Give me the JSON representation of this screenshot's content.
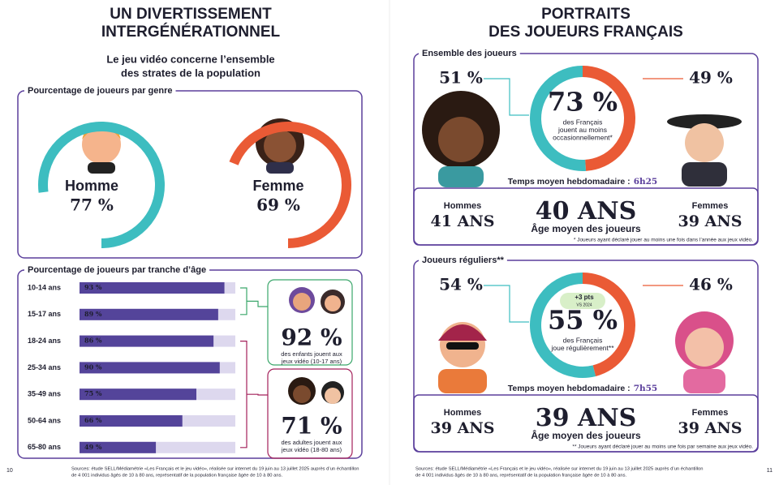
{
  "left": {
    "title_lines": [
      "UN DIVERTISSEMENT",
      "INTERGÉNÉRATIONNEL"
    ],
    "subtitle_lines": [
      "Le jeu vidéo concerne l’ensemble",
      "des strates de la population"
    ],
    "gender": {
      "type": "donut",
      "title": "Pourcentage de joueurs par genre",
      "categories": [
        "Homme",
        "Femme"
      ],
      "values": [
        77,
        69
      ],
      "value_labels": [
        "77 %",
        "69 %"
      ],
      "colors": [
        "#3dbdc0",
        "#ea5a35"
      ]
    },
    "age": {
      "type": "bar",
      "title": "Pourcentage de joueurs par tranche d’âge",
      "categories": [
        "10-14 ans",
        "15-17 ans",
        "18-24 ans",
        "25-34 ans",
        "35-49 ans",
        "50-64 ans",
        "65-80 ans"
      ],
      "values": [
        93,
        89,
        86,
        90,
        75,
        66,
        49
      ],
      "value_labels": [
        "93 %",
        "89 %",
        "86 %",
        "90 %",
        "75 %",
        "66 %",
        "49 %"
      ],
      "xlim": [
        0,
        100
      ],
      "color": "#54449a"
    },
    "callouts": [
      {
        "value": "92 %",
        "lines": [
          "des enfants jouent aux",
          "jeux vidéo (10-17 ans)"
        ],
        "color": "#3aa66a"
      },
      {
        "value": "71 %",
        "lines": [
          "des adultes jouent aux",
          "jeux vidéo (18-80 ans)"
        ],
        "color": "#a3205a"
      }
    ],
    "page_number": "10",
    "sources": [
      "Sources: étude SELL/Médiamétrie «Les Français et le jeu vidéo», réalisée sur internet du 19 juin au 13 juillet 2025 auprès d’un échantillon",
      "de 4 001 individus âgés de 10 à 80 ans, représentatif de la population française âgée de 10 à 80 ans."
    ]
  },
  "right": {
    "title_lines": [
      "PORTRAITS",
      "DES JOUEURS FRANÇAIS"
    ],
    "panels": [
      {
        "label": "Ensemble des joueurs",
        "type": "donut",
        "values": [
          51,
          49
        ],
        "value_labels": [
          "51 %",
          "49 %"
        ],
        "colors": [
          "#3dbdc0",
          "#ea5a35"
        ],
        "center_value": "73 %",
        "center_lines": [
          "des Français",
          "jouent au moins",
          "occasionnellement*"
        ],
        "time_label": "Temps moyen hebdomadaire :",
        "time_value": "6h25",
        "men_label": "Hommes",
        "men_age": "41 ANS",
        "avg_age": "40 ANS",
        "avg_label": "Âge moyen des joueurs",
        "women_label": "Femmes",
        "women_age": "39 ANS",
        "footnote": "* Joueurs ayant déclaré jouer au moins une fois dans l’année aux jeux vidéo."
      },
      {
        "label": "Joueurs réguliers**",
        "type": "donut",
        "values": [
          54,
          46
        ],
        "value_labels": [
          "54 %",
          "46 %"
        ],
        "colors": [
          "#3dbdc0",
          "#ea5a35"
        ],
        "badge": {
          "value": "+3 pts",
          "note": "VS 2024"
        },
        "center_value": "55 %",
        "center_lines": [
          "des Français",
          "joue régulièrement**"
        ],
        "time_label": "Temps moyen hebdomadaire :",
        "time_value": "7h55",
        "men_label": "Hommes",
        "men_age": "39 ANS",
        "avg_age": "39 ANS",
        "avg_label": "Âge moyen des joueurs",
        "women_label": "Femmes",
        "women_age": "39 ANS",
        "footnote": "** Joueurs ayant déclaré jouer au moins une fois par semaine aux jeux vidéo."
      }
    ],
    "page_number": "11",
    "sources": [
      "Sources: étude SELL/Médiamétrie «Les Français et le jeu vidéo», réalisée sur internet du 19 juin au 13 juillet 2025 auprès d’un échantillon",
      "de 4 001 individus âgés de 10 à 80 ans, représentatif de la population française âgée de 10 à 80 ans."
    ]
  }
}
